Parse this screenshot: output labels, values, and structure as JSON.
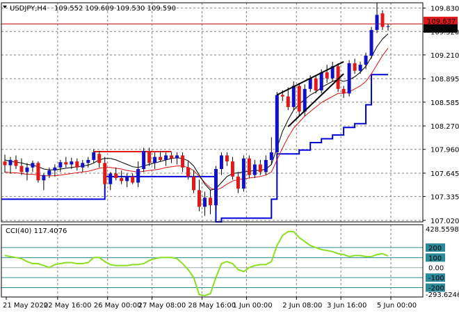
{
  "header": {
    "symbol": "USDJPY,H4",
    "ohlc": "109.552 109.609 109.530 109.590"
  },
  "cci_header": "CCI(40) 117.4076",
  "colors": {
    "bull": "#1010c8",
    "bear": "#e01818",
    "wick": "#000000",
    "ma_fast": "#000000",
    "ma_slow": "#e01010",
    "stop": "#0000dd",
    "cci_line": "#88e020",
    "cci_band": "#2a8a9a",
    "hline": "#cc0000",
    "price_tag_bg": "#000000"
  },
  "chart_data": {
    "type": "candlestick",
    "y_ticks": [
      "109.830",
      "109.520",
      "109.210",
      "108.895",
      "108.585",
      "108.270",
      "107.960",
      "107.645",
      "107.335",
      "107.020"
    ],
    "y_tick_values": [
      109.83,
      109.52,
      109.21,
      108.895,
      108.585,
      108.27,
      107.96,
      107.645,
      107.335,
      107.02
    ],
    "ylim": [
      107.0,
      109.9
    ],
    "price_tags": {
      "ask": "109.637",
      "bid": "109.590"
    },
    "x_labels": [
      "21 May 2020",
      "22 May 16:00",
      "26 May 00:00",
      "27 May 08:00",
      "28 May 16:00",
      "1 Jun 00:00",
      "2 Jun 08:00",
      "3 Jun 16:00",
      "5 Jun 00:00"
    ],
    "candles": [
      {
        "o": 107.8,
        "h": 107.89,
        "l": 107.65,
        "c": 107.75
      },
      {
        "o": 107.75,
        "h": 107.86,
        "l": 107.64,
        "c": 107.82
      },
      {
        "o": 107.82,
        "h": 107.88,
        "l": 107.7,
        "c": 107.74
      },
      {
        "o": 107.74,
        "h": 107.84,
        "l": 107.62,
        "c": 107.66
      },
      {
        "o": 107.66,
        "h": 107.78,
        "l": 107.55,
        "c": 107.72
      },
      {
        "o": 107.72,
        "h": 107.81,
        "l": 107.66,
        "c": 107.78
      },
      {
        "o": 107.78,
        "h": 107.8,
        "l": 107.52,
        "c": 107.55
      },
      {
        "o": 107.55,
        "h": 107.64,
        "l": 107.42,
        "c": 107.62
      },
      {
        "o": 107.62,
        "h": 107.72,
        "l": 107.58,
        "c": 107.68
      },
      {
        "o": 107.68,
        "h": 107.76,
        "l": 107.6,
        "c": 107.72
      },
      {
        "o": 107.72,
        "h": 107.82,
        "l": 107.66,
        "c": 107.79
      },
      {
        "o": 107.79,
        "h": 107.86,
        "l": 107.72,
        "c": 107.76
      },
      {
        "o": 107.76,
        "h": 107.85,
        "l": 107.7,
        "c": 107.8
      },
      {
        "o": 107.8,
        "h": 107.84,
        "l": 107.68,
        "c": 107.72
      },
      {
        "o": 107.72,
        "h": 107.82,
        "l": 107.66,
        "c": 107.78
      },
      {
        "o": 107.78,
        "h": 107.86,
        "l": 107.72,
        "c": 107.82
      },
      {
        "o": 107.82,
        "h": 107.96,
        "l": 107.78,
        "c": 107.92
      },
      {
        "o": 107.9,
        "h": 107.94,
        "l": 107.72,
        "c": 107.78
      },
      {
        "o": 107.78,
        "h": 107.86,
        "l": 107.44,
        "c": 107.5
      },
      {
        "o": 107.5,
        "h": 107.66,
        "l": 107.42,
        "c": 107.64
      },
      {
        "o": 107.64,
        "h": 107.72,
        "l": 107.55,
        "c": 107.58
      },
      {
        "o": 107.58,
        "h": 107.68,
        "l": 107.5,
        "c": 107.54
      },
      {
        "o": 107.54,
        "h": 107.64,
        "l": 107.46,
        "c": 107.6
      },
      {
        "o": 107.6,
        "h": 107.64,
        "l": 107.5,
        "c": 107.52
      },
      {
        "o": 107.52,
        "h": 107.8,
        "l": 107.46,
        "c": 107.7
      },
      {
        "o": 107.7,
        "h": 107.98,
        "l": 107.66,
        "c": 107.94
      },
      {
        "o": 107.94,
        "h": 107.98,
        "l": 107.74,
        "c": 107.78
      },
      {
        "o": 107.78,
        "h": 107.92,
        "l": 107.7,
        "c": 107.86
      },
      {
        "o": 107.86,
        "h": 107.94,
        "l": 107.8,
        "c": 107.82
      },
      {
        "o": 107.82,
        "h": 107.92,
        "l": 107.74,
        "c": 107.88
      },
      {
        "o": 107.88,
        "h": 107.92,
        "l": 107.78,
        "c": 107.84
      },
      {
        "o": 107.84,
        "h": 107.92,
        "l": 107.76,
        "c": 107.88
      },
      {
        "o": 107.88,
        "h": 107.92,
        "l": 107.66,
        "c": 107.72
      },
      {
        "o": 107.72,
        "h": 107.8,
        "l": 107.56,
        "c": 107.6
      },
      {
        "o": 107.6,
        "h": 107.68,
        "l": 107.38,
        "c": 107.42
      },
      {
        "o": 107.42,
        "h": 107.56,
        "l": 107.14,
        "c": 107.2
      },
      {
        "o": 107.2,
        "h": 107.4,
        "l": 107.08,
        "c": 107.32
      },
      {
        "o": 107.32,
        "h": 107.42,
        "l": 107.1,
        "c": 107.22
      },
      {
        "o": 107.22,
        "h": 107.74,
        "l": 107.16,
        "c": 107.7
      },
      {
        "o": 107.7,
        "h": 107.92,
        "l": 107.62,
        "c": 107.88
      },
      {
        "o": 107.88,
        "h": 107.92,
        "l": 107.74,
        "c": 107.8
      },
      {
        "o": 107.8,
        "h": 107.86,
        "l": 107.56,
        "c": 107.6
      },
      {
        "o": 107.6,
        "h": 107.66,
        "l": 107.38,
        "c": 107.44
      },
      {
        "o": 107.44,
        "h": 107.88,
        "l": 107.4,
        "c": 107.84
      },
      {
        "o": 107.84,
        "h": 107.88,
        "l": 107.58,
        "c": 107.62
      },
      {
        "o": 107.62,
        "h": 107.82,
        "l": 107.58,
        "c": 107.76
      },
      {
        "o": 107.76,
        "h": 107.82,
        "l": 107.62,
        "c": 107.66
      },
      {
        "o": 107.66,
        "h": 107.88,
        "l": 107.62,
        "c": 107.82
      },
      {
        "o": 107.82,
        "h": 108.12,
        "l": 107.76,
        "c": 107.92
      },
      {
        "o": 107.92,
        "h": 108.72,
        "l": 107.88,
        "c": 108.68
      },
      {
        "o": 108.68,
        "h": 108.74,
        "l": 108.6,
        "c": 108.66
      },
      {
        "o": 108.66,
        "h": 108.78,
        "l": 108.48,
        "c": 108.52
      },
      {
        "o": 108.52,
        "h": 108.86,
        "l": 108.48,
        "c": 108.8
      },
      {
        "o": 108.8,
        "h": 108.84,
        "l": 108.4,
        "c": 108.46
      },
      {
        "o": 108.46,
        "h": 108.82,
        "l": 108.4,
        "c": 108.76
      },
      {
        "o": 108.76,
        "h": 108.94,
        "l": 108.72,
        "c": 108.9
      },
      {
        "o": 108.9,
        "h": 108.94,
        "l": 108.7,
        "c": 108.74
      },
      {
        "o": 108.74,
        "h": 109.02,
        "l": 108.7,
        "c": 108.98
      },
      {
        "o": 108.98,
        "h": 109.08,
        "l": 108.84,
        "c": 108.9
      },
      {
        "o": 108.9,
        "h": 109.12,
        "l": 108.86,
        "c": 109.06
      },
      {
        "o": 109.06,
        "h": 109.1,
        "l": 108.72,
        "c": 108.76
      },
      {
        "o": 108.76,
        "h": 108.8,
        "l": 108.64,
        "c": 108.7
      },
      {
        "o": 108.7,
        "h": 109.14,
        "l": 108.66,
        "c": 109.1
      },
      {
        "o": 109.1,
        "h": 109.16,
        "l": 108.96,
        "c": 109.0
      },
      {
        "o": 109.0,
        "h": 109.12,
        "l": 108.96,
        "c": 109.08
      },
      {
        "o": 109.08,
        "h": 109.24,
        "l": 109.02,
        "c": 109.2
      },
      {
        "o": 109.2,
        "h": 109.58,
        "l": 109.16,
        "c": 109.54
      },
      {
        "o": 109.54,
        "h": 109.9,
        "l": 109.5,
        "c": 109.74
      },
      {
        "o": 109.76,
        "h": 109.8,
        "l": 109.54,
        "c": 109.58
      },
      {
        "o": 109.58,
        "h": 109.62,
        "l": 109.53,
        "c": 109.59
      }
    ],
    "ma_fast": [
      107.82,
      107.8,
      107.79,
      107.78,
      107.76,
      107.75,
      107.73,
      107.7,
      107.69,
      107.69,
      107.7,
      107.71,
      107.72,
      107.73,
      107.74,
      107.75,
      107.78,
      107.82,
      107.84,
      107.84,
      107.82,
      107.79,
      107.76,
      107.73,
      107.72,
      107.74,
      107.76,
      107.78,
      107.8,
      107.82,
      107.84,
      107.85,
      107.84,
      107.81,
      107.74,
      107.62,
      107.5,
      107.42,
      107.44,
      107.52,
      107.6,
      107.64,
      107.65,
      107.66,
      107.67,
      107.68,
      107.68,
      107.7,
      107.76,
      107.98,
      108.2,
      108.35,
      108.48,
      108.56,
      108.62,
      108.68,
      108.72,
      108.78,
      108.82,
      108.86,
      108.88,
      108.86,
      108.88,
      108.92,
      108.98,
      109.06,
      109.18,
      109.32,
      109.42,
      109.49
    ],
    "ma_slow": [
      107.66,
      107.65,
      107.65,
      107.64,
      107.63,
      107.63,
      107.62,
      107.61,
      107.61,
      107.61,
      107.62,
      107.63,
      107.64,
      107.65,
      107.66,
      107.67,
      107.69,
      107.71,
      107.72,
      107.72,
      107.71,
      107.7,
      107.68,
      107.67,
      107.66,
      107.67,
      107.68,
      107.69,
      107.7,
      107.72,
      107.73,
      107.74,
      107.74,
      107.72,
      107.68,
      107.6,
      107.52,
      107.45,
      107.42,
      107.45,
      107.5,
      107.54,
      107.56,
      107.57,
      107.58,
      107.59,
      107.6,
      107.62,
      107.66,
      107.82,
      107.98,
      108.12,
      108.24,
      108.32,
      108.4,
      108.46,
      108.52,
      108.58,
      108.62,
      108.66,
      108.7,
      108.7,
      108.72,
      108.76,
      108.8,
      108.86,
      108.96,
      109.08,
      109.2,
      109.3
    ],
    "stop_line": [
      107.3,
      107.3,
      107.3,
      107.3,
      107.3,
      107.3,
      107.3,
      107.3,
      107.3,
      107.3,
      107.3,
      107.3,
      107.3,
      107.3,
      107.3,
      107.3,
      107.3,
      107.3,
      107.6,
      107.6,
      107.6,
      107.6,
      107.6,
      107.6,
      107.6,
      107.6,
      107.6,
      107.6,
      107.6,
      107.6,
      107.6,
      107.6,
      107.6,
      107.6,
      107.6,
      107.6,
      107.6,
      107.6,
      107.0,
      107.05,
      107.05,
      107.05,
      107.05,
      107.05,
      107.05,
      107.05,
      107.05,
      107.05,
      107.3,
      107.9,
      107.9,
      107.9,
      107.9,
      107.95,
      107.95,
      108.05,
      108.05,
      108.1,
      108.1,
      108.15,
      108.15,
      108.25,
      108.25,
      108.3,
      108.3,
      108.55,
      108.95,
      108.95,
      108.95,
      108.95
    ],
    "resistance": {
      "from": 16,
      "to": 30,
      "value": 107.93
    },
    "trend_upper": {
      "from": [
        49,
        108.68
      ],
      "to": [
        61,
        109.12
      ]
    },
    "trend_lower": {
      "from": [
        51,
        108.26
      ],
      "to": [
        61,
        108.96
      ]
    },
    "cci": {
      "ylim": [
        -293.6246,
        428.5598
      ],
      "levels": [
        200,
        100,
        0,
        -100,
        -200
      ],
      "level_labels": [
        "200",
        "100",
        "0.00",
        "-100",
        "-200"
      ],
      "max_label": "428.5598",
      "min_label": "-293.6246",
      "values": [
        120,
        110,
        100,
        90,
        60,
        40,
        40,
        20,
        0,
        30,
        40,
        50,
        50,
        40,
        40,
        50,
        100,
        100,
        60,
        30,
        20,
        20,
        20,
        30,
        30,
        40,
        70,
        90,
        100,
        100,
        100,
        90,
        40,
        -20,
        -100,
        -270,
        -280,
        -260,
        -100,
        40,
        60,
        40,
        -20,
        -40,
        0,
        20,
        30,
        30,
        60,
        220,
        320,
        360,
        360,
        300,
        260,
        220,
        200,
        180,
        170,
        160,
        140,
        130,
        110,
        120,
        120,
        110,
        110,
        130,
        140,
        117
      ]
    }
  }
}
